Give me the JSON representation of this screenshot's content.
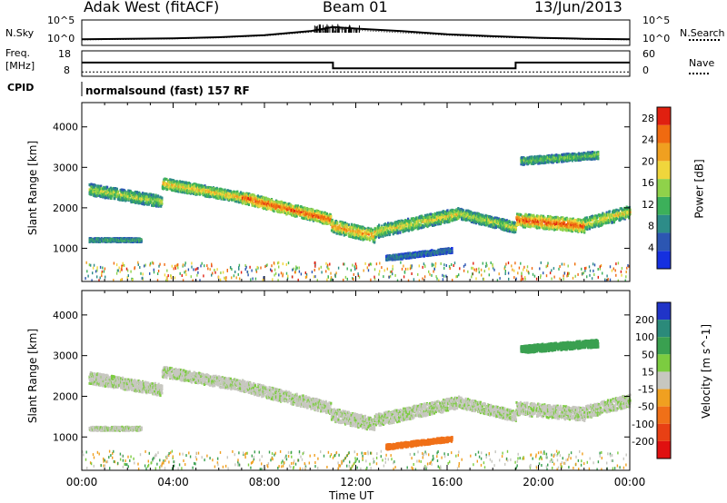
{
  "header": {
    "title": "Adak West (fitACF)",
    "beam": "Beam 01",
    "date": "13/Jun/2013"
  },
  "summary_panel": {
    "noise_label": "N.Sky",
    "noise_ticks": [
      "10^5",
      "10^0"
    ],
    "noise_right_ticks": [
      "10^5",
      "10^0"
    ],
    "noise_search_label": "N.Search",
    "freq_label_line1": "Freq.",
    "freq_label_line2": "[MHz]",
    "freq_ticks": [
      "18",
      "8"
    ],
    "nave_ticks": [
      "60",
      "0"
    ],
    "nave_label": "Nave",
    "cpid_label": "CPID",
    "cpid_text": "normalsound (fast) 157 RF"
  },
  "x_axis": {
    "label": "Time UT",
    "ticks": [
      "00:00",
      "04:00",
      "08:00",
      "12:00",
      "16:00",
      "20:00",
      "00:00"
    ]
  },
  "colors": {
    "power_scale": [
      "#1530e0",
      "#2c56b2",
      "#2d8c88",
      "#3cb05a",
      "#8fd24a",
      "#f0d63c",
      "#f0a020",
      "#f06a10",
      "#e02010"
    ],
    "velocity_scale": [
      "#2034c8",
      "#2b8a7a",
      "#3aa050",
      "#7ccc40",
      "#c7c7c0",
      "#f0a020",
      "#f07018",
      "#e84014",
      "#e01010"
    ]
  },
  "chart_data": [
    {
      "type": "line",
      "title": "N.Sky",
      "x": [
        "00:00",
        "02:00",
        "04:00",
        "06:00",
        "08:00",
        "10:00",
        "11:00",
        "12:00",
        "14:00",
        "16:00",
        "18:00",
        "20:00",
        "22:00",
        "24:00"
      ],
      "series": [
        {
          "name": "N.Sky",
          "values": [
            1.2,
            1.3,
            1.4,
            1.6,
            2.0,
            2.8,
            3.6,
            3.3,
            2.8,
            2.2,
            1.8,
            1.5,
            1.3,
            1.2
          ]
        },
        {
          "name": "N.Search",
          "values": [
            1.1,
            1.2,
            1.3,
            1.5,
            1.9,
            2.6,
            3.3,
            3.0,
            2.5,
            2.0,
            1.6,
            1.4,
            1.2,
            1.1
          ]
        }
      ],
      "ylim": [
        0,
        5
      ]
    },
    {
      "type": "line",
      "title": "Freq. [MHz] / Nave",
      "x": [
        "00:00",
        "11:00",
        "11:00",
        "19:00",
        "19:00",
        "24:00"
      ],
      "series": [
        {
          "name": "Freq. [MHz]",
          "values": [
            13.4,
            13.4,
            11.1,
            11.1,
            13.4,
            13.4
          ]
        },
        {
          "name": "Nave",
          "values": [
            10,
            10,
            10,
            10,
            10,
            10
          ]
        }
      ],
      "ylim": [
        8,
        18
      ]
    },
    {
      "type": "heatmap",
      "title": "Power [dB]",
      "xlabel": "Time UT",
      "ylabel": "Slant Range [km]",
      "x_ticks": [
        "00:00",
        "04:00",
        "08:00",
        "12:00",
        "16:00",
        "20:00",
        "00:00"
      ],
      "y_ticks": [
        1000,
        2000,
        3000,
        4000
      ],
      "xlim": [
        0,
        24
      ],
      "ylim": [
        180,
        4600
      ],
      "colorbar_label": "Power [dB]",
      "colorbar_ticks": [
        4,
        8,
        12,
        16,
        20,
        24,
        28
      ],
      "colorbar_range": [
        0,
        30
      ],
      "echo_bands": [
        {
          "t_start": 0.3,
          "t_end": 3.5,
          "range_start": 2450,
          "range_end": 2150,
          "width": 280,
          "power": 16
        },
        {
          "t_start": 3.5,
          "t_end": 7.0,
          "range_start": 2600,
          "range_end": 2250,
          "width": 260,
          "power": 20
        },
        {
          "t_start": 7.0,
          "t_end": 10.9,
          "range_start": 2250,
          "range_end": 1700,
          "width": 280,
          "power": 26
        },
        {
          "t_start": 10.9,
          "t_end": 12.8,
          "range_start": 1550,
          "range_end": 1300,
          "width": 320,
          "power": 22
        },
        {
          "t_start": 12.8,
          "t_end": 16.5,
          "range_start": 1400,
          "range_end": 1850,
          "width": 300,
          "power": 18
        },
        {
          "t_start": 16.5,
          "t_end": 19.0,
          "range_start": 1850,
          "range_end": 1500,
          "width": 260,
          "power": 16
        },
        {
          "t_start": 19.0,
          "t_end": 22.0,
          "range_start": 1700,
          "range_end": 1550,
          "width": 320,
          "power": 26
        },
        {
          "t_start": 22.0,
          "t_end": 24.0,
          "range_start": 1600,
          "range_end": 1900,
          "width": 300,
          "power": 18
        },
        {
          "t_start": 0.3,
          "t_end": 2.6,
          "range_start": 1200,
          "range_end": 1200,
          "width": 90,
          "power": 12
        },
        {
          "t_start": 13.3,
          "t_end": 16.2,
          "range_start": 750,
          "range_end": 950,
          "width": 120,
          "power": 8
        },
        {
          "t_start": 19.2,
          "t_end": 22.6,
          "range_start": 3150,
          "range_end": 3300,
          "width": 180,
          "power": 14
        }
      ]
    },
    {
      "type": "heatmap",
      "title": "Velocity [m s^-1]",
      "xlabel": "Time UT",
      "ylabel": "Slant Range [km]",
      "x_ticks": [
        "00:00",
        "04:00",
        "08:00",
        "12:00",
        "16:00",
        "20:00",
        "00:00"
      ],
      "y_ticks": [
        1000,
        2000,
        3000,
        4000
      ],
      "xlim": [
        0,
        24
      ],
      "ylim": [
        180,
        4600
      ],
      "colorbar_label": "Velocity [m s^-1]",
      "colorbar_ticks": [
        200,
        100,
        50,
        15,
        -15,
        -50,
        -100,
        -200
      ],
      "echo_bands": [
        {
          "t_start": 0.3,
          "t_end": 3.5,
          "range_start": 2450,
          "range_end": 2150,
          "width": 280,
          "velocity": 0
        },
        {
          "t_start": 3.5,
          "t_end": 7.0,
          "range_start": 2600,
          "range_end": 2250,
          "width": 260,
          "velocity": 0
        },
        {
          "t_start": 7.0,
          "t_end": 10.9,
          "range_start": 2250,
          "range_end": 1700,
          "width": 280,
          "velocity": 0
        },
        {
          "t_start": 10.9,
          "t_end": 12.8,
          "range_start": 1550,
          "range_end": 1300,
          "width": 320,
          "velocity": 0
        },
        {
          "t_start": 12.8,
          "t_end": 16.5,
          "range_start": 1400,
          "range_end": 1850,
          "width": 300,
          "velocity": 0
        },
        {
          "t_start": 16.5,
          "t_end": 19.0,
          "range_start": 1850,
          "range_end": 1500,
          "width": 260,
          "velocity": 0
        },
        {
          "t_start": 19.0,
          "t_end": 22.0,
          "range_start": 1700,
          "range_end": 1550,
          "width": 320,
          "velocity": 0
        },
        {
          "t_start": 22.0,
          "t_end": 24.0,
          "range_start": 1600,
          "range_end": 1900,
          "width": 300,
          "velocity": 0
        },
        {
          "t_start": 0.3,
          "t_end": 2.6,
          "range_start": 1200,
          "range_end": 1200,
          "width": 90,
          "velocity": 0
        },
        {
          "t_start": 13.3,
          "t_end": 16.2,
          "range_start": 750,
          "range_end": 950,
          "width": 120,
          "velocity": -80
        },
        {
          "t_start": 19.2,
          "t_end": 22.6,
          "range_start": 3150,
          "range_end": 3300,
          "width": 180,
          "velocity": 40
        }
      ]
    }
  ]
}
